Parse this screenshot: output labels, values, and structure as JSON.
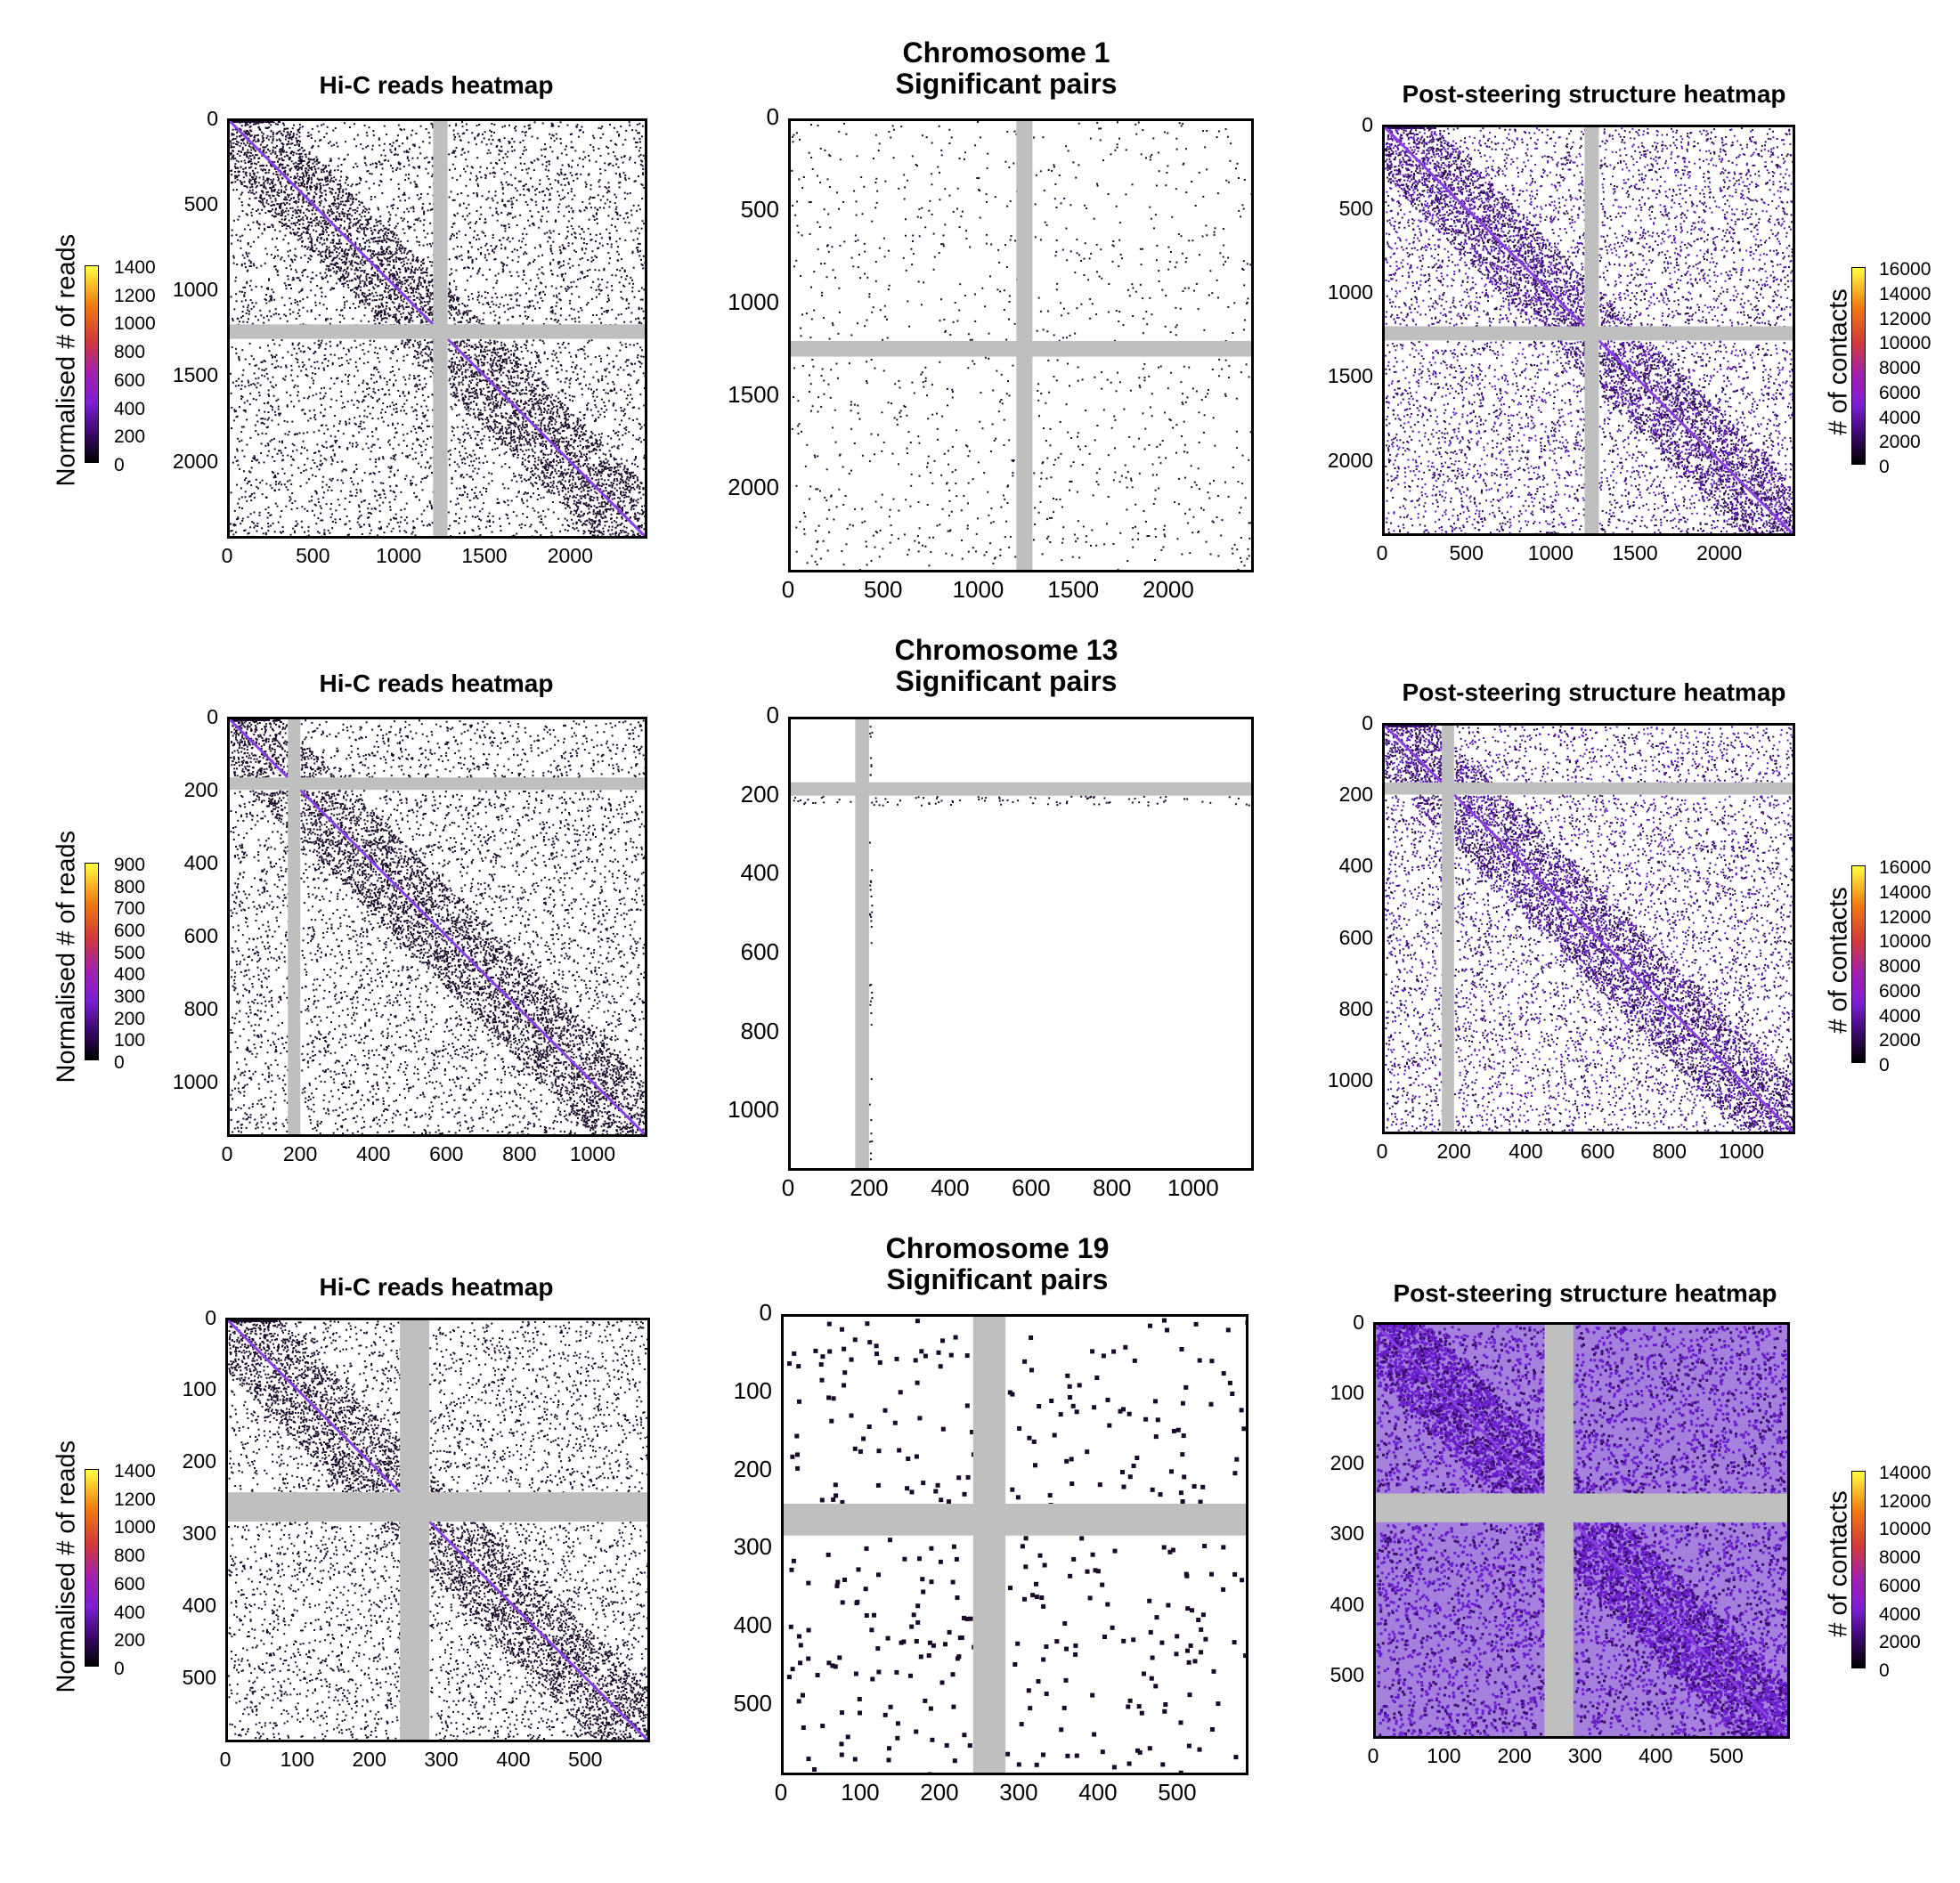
{
  "figure_rows": [
    {
      "chromosome_title": "Chromosome 1",
      "significant_title": "Significant pairs",
      "hic_title": "Hi-C reads heatmap",
      "post_title": "Post-steering structure heatmap",
      "hic_colorbar": {
        "label": "Normalised # of reads",
        "ticks": [
          "1400",
          "1200",
          "1000",
          "800",
          "600",
          "400",
          "200",
          "0"
        ]
      },
      "post_colorbar": {
        "label": "# of contacts",
        "ticks": [
          "16000",
          "14000",
          "12000",
          "10000",
          "8000",
          "6000",
          "4000",
          "2000",
          "0"
        ]
      },
      "hic_axis": {
        "x_ticks": [
          "0",
          "500",
          "1000",
          "1500",
          "2000"
        ],
        "y_ticks": [
          "0",
          "500",
          "1000",
          "1500",
          "2000"
        ]
      },
      "sig_axis": {
        "x_ticks": [
          "0",
          "500",
          "1000",
          "1500",
          "2000"
        ],
        "y_ticks": [
          "0",
          "500",
          "1000",
          "1500",
          "2000"
        ]
      },
      "post_axis": {
        "x_ticks": [
          "0",
          "500",
          "1000",
          "1500",
          "2000"
        ],
        "y_ticks": [
          "0",
          "500",
          "1000",
          "1500",
          "2000"
        ]
      }
    },
    {
      "chromosome_title": "Chromosome 13",
      "significant_title": "Significant pairs",
      "hic_title": "Hi-C reads heatmap",
      "post_title": "Post-steering structure heatmap",
      "hic_colorbar": {
        "label": "Normalised # of reads",
        "ticks": [
          "900",
          "800",
          "700",
          "600",
          "500",
          "400",
          "300",
          "200",
          "100",
          "0"
        ]
      },
      "post_colorbar": {
        "label": "# of contacts",
        "ticks": [
          "16000",
          "14000",
          "12000",
          "10000",
          "8000",
          "6000",
          "4000",
          "2000",
          "0"
        ]
      },
      "hic_axis": {
        "x_ticks": [
          "0",
          "200",
          "400",
          "600",
          "800",
          "1000"
        ],
        "y_ticks": [
          "0",
          "200",
          "400",
          "600",
          "800",
          "1000"
        ]
      },
      "sig_axis": {
        "x_ticks": [
          "0",
          "200",
          "400",
          "600",
          "800",
          "1000"
        ],
        "y_ticks": [
          "0",
          "200",
          "400",
          "600",
          "800",
          "1000"
        ]
      },
      "post_axis": {
        "x_ticks": [
          "0",
          "200",
          "400",
          "600",
          "800",
          "1000"
        ],
        "y_ticks": [
          "0",
          "200",
          "400",
          "600",
          "800",
          "1000"
        ]
      }
    },
    {
      "chromosome_title": "Chromosome 19",
      "significant_title": "Significant pairs",
      "hic_title": "Hi-C reads heatmap",
      "post_title": "Post-steering structure heatmap",
      "hic_colorbar": {
        "label": "Normalised # of reads",
        "ticks": [
          "1400",
          "1200",
          "1000",
          "800",
          "600",
          "400",
          "200",
          "0"
        ]
      },
      "post_colorbar": {
        "label": "# of contacts",
        "ticks": [
          "14000",
          "12000",
          "10000",
          "8000",
          "6000",
          "4000",
          "2000",
          "0"
        ]
      },
      "hic_axis": {
        "x_ticks": [
          "0",
          "100",
          "200",
          "300",
          "400",
          "500"
        ],
        "y_ticks": [
          "0",
          "100",
          "200",
          "300",
          "400",
          "500"
        ]
      },
      "sig_axis": {
        "x_ticks": [
          "0",
          "100",
          "200",
          "300",
          "400",
          "500"
        ],
        "y_ticks": [
          "0",
          "100",
          "200",
          "300",
          "400",
          "500"
        ]
      },
      "post_axis": {
        "x_ticks": [
          "0",
          "100",
          "200",
          "300",
          "400",
          "500"
        ],
        "y_ticks": [
          "0",
          "100",
          "200",
          "300",
          "400",
          "500"
        ]
      }
    }
  ],
  "chart_data": [
    {
      "type": "heatmap",
      "title": "Hi-C reads heatmap",
      "chromosome": "Chromosome 1",
      "range": [
        0,
        2450
      ],
      "centromere_gap": [
        1200,
        1280
      ],
      "colorbar": {
        "label": "Normalised # of reads",
        "range": [
          0,
          1400
        ]
      }
    },
    {
      "type": "heatmap",
      "title": "Significant pairs",
      "chromosome": "Chromosome 1",
      "range": [
        0,
        2450
      ],
      "centromere_gap": [
        1200,
        1280
      ]
    },
    {
      "type": "heatmap",
      "title": "Post-steering structure heatmap",
      "chromosome": "Chromosome 1",
      "range": [
        0,
        2450
      ],
      "centromere_gap": [
        1200,
        1280
      ],
      "colorbar": {
        "label": "# of contacts",
        "range": [
          0,
          16000
        ]
      }
    },
    {
      "type": "heatmap",
      "title": "Hi-C reads heatmap",
      "chromosome": "Chromosome 13",
      "range": [
        0,
        1150
      ],
      "centromere_gap": [
        160,
        190
      ],
      "colorbar": {
        "label": "Normalised # of reads",
        "range": [
          0,
          900
        ]
      }
    },
    {
      "type": "heatmap",
      "title": "Significant pairs",
      "chromosome": "Chromosome 13",
      "range": [
        0,
        1150
      ],
      "centromere_gap": [
        160,
        190
      ]
    },
    {
      "type": "heatmap",
      "title": "Post-steering structure heatmap",
      "chromosome": "Chromosome 13",
      "range": [
        0,
        1150
      ],
      "centromere_gap": [
        160,
        190
      ],
      "colorbar": {
        "label": "# of contacts",
        "range": [
          0,
          16000
        ]
      }
    },
    {
      "type": "heatmap",
      "title": "Hi-C reads heatmap",
      "chromosome": "Chromosome 19",
      "range": [
        0,
        590
      ],
      "centromere_gap": [
        245,
        285
      ],
      "colorbar": {
        "label": "Normalised # of reads",
        "range": [
          0,
          1400
        ]
      }
    },
    {
      "type": "heatmap",
      "title": "Significant pairs",
      "chromosome": "Chromosome 19",
      "range": [
        0,
        590
      ],
      "centromere_gap": [
        245,
        285
      ]
    },
    {
      "type": "heatmap",
      "title": "Post-steering structure heatmap",
      "chromosome": "Chromosome 19",
      "range": [
        0,
        590
      ],
      "centromere_gap": [
        245,
        285
      ],
      "colorbar": {
        "label": "# of contacts",
        "range": [
          0,
          14000
        ]
      }
    }
  ]
}
